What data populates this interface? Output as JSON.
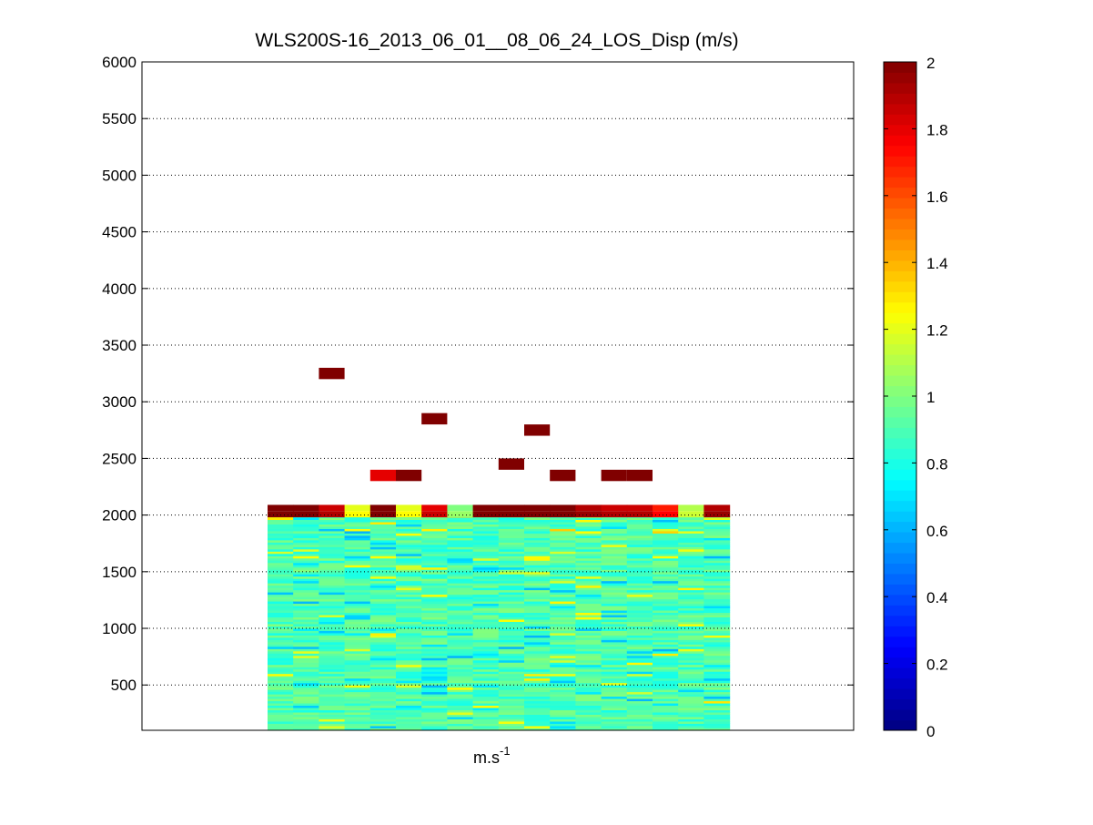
{
  "chart_data": {
    "type": "heatmap",
    "title": "WLS200S-16_2013_06_01__08_06_24_LOS_Disp (m/s)",
    "xlabel_base": "m.s",
    "xlabel_sup": "-1",
    "ylabel": "",
    "ylim": [
      100,
      6000
    ],
    "yticks": [
      500,
      1000,
      1500,
      2000,
      2500,
      3000,
      3500,
      4000,
      4500,
      5000,
      5500,
      6000
    ],
    "grid": "horizontal dotted",
    "colormap": "jet",
    "colorbar": {
      "range": [
        0,
        2
      ],
      "ticks": [
        "0",
        "0.2",
        "0.4",
        "0.6",
        "0.8",
        "1",
        "1.2",
        "1.4",
        "1.6",
        "1.8",
        "2"
      ]
    },
    "columns": 18,
    "bulk": {
      "altitude_min": 100,
      "altitude_max": 2000,
      "typical_value": 0.9,
      "value_range": [
        0.6,
        1.3
      ]
    },
    "top_layer": {
      "altitude_min": 1980,
      "altitude_max": 2090,
      "values": [
        2.0,
        2.0,
        1.85,
        1.2,
        2.0,
        1.2,
        1.8,
        1.0,
        2.0,
        2.0,
        2.0,
        2.0,
        1.9,
        1.85,
        1.85,
        1.7,
        1.1,
        1.9
      ]
    },
    "isolated_points": [
      {
        "column": 3,
        "altitude": 3250,
        "value": 2.0
      },
      {
        "column": 7,
        "altitude": 2850,
        "value": 2.0
      },
      {
        "column": 11,
        "altitude": 2750,
        "value": 2.0
      },
      {
        "column": 10,
        "altitude": 2450,
        "value": 2.0
      },
      {
        "column": 5,
        "altitude": 2350,
        "value": 1.8
      },
      {
        "column": 6,
        "altitude": 2350,
        "value": 2.0
      },
      {
        "column": 12,
        "altitude": 2350,
        "value": 2.0
      },
      {
        "column": 14,
        "altitude": 2350,
        "value": 2.0
      },
      {
        "column": 15,
        "altitude": 2350,
        "value": 2.0
      }
    ]
  }
}
